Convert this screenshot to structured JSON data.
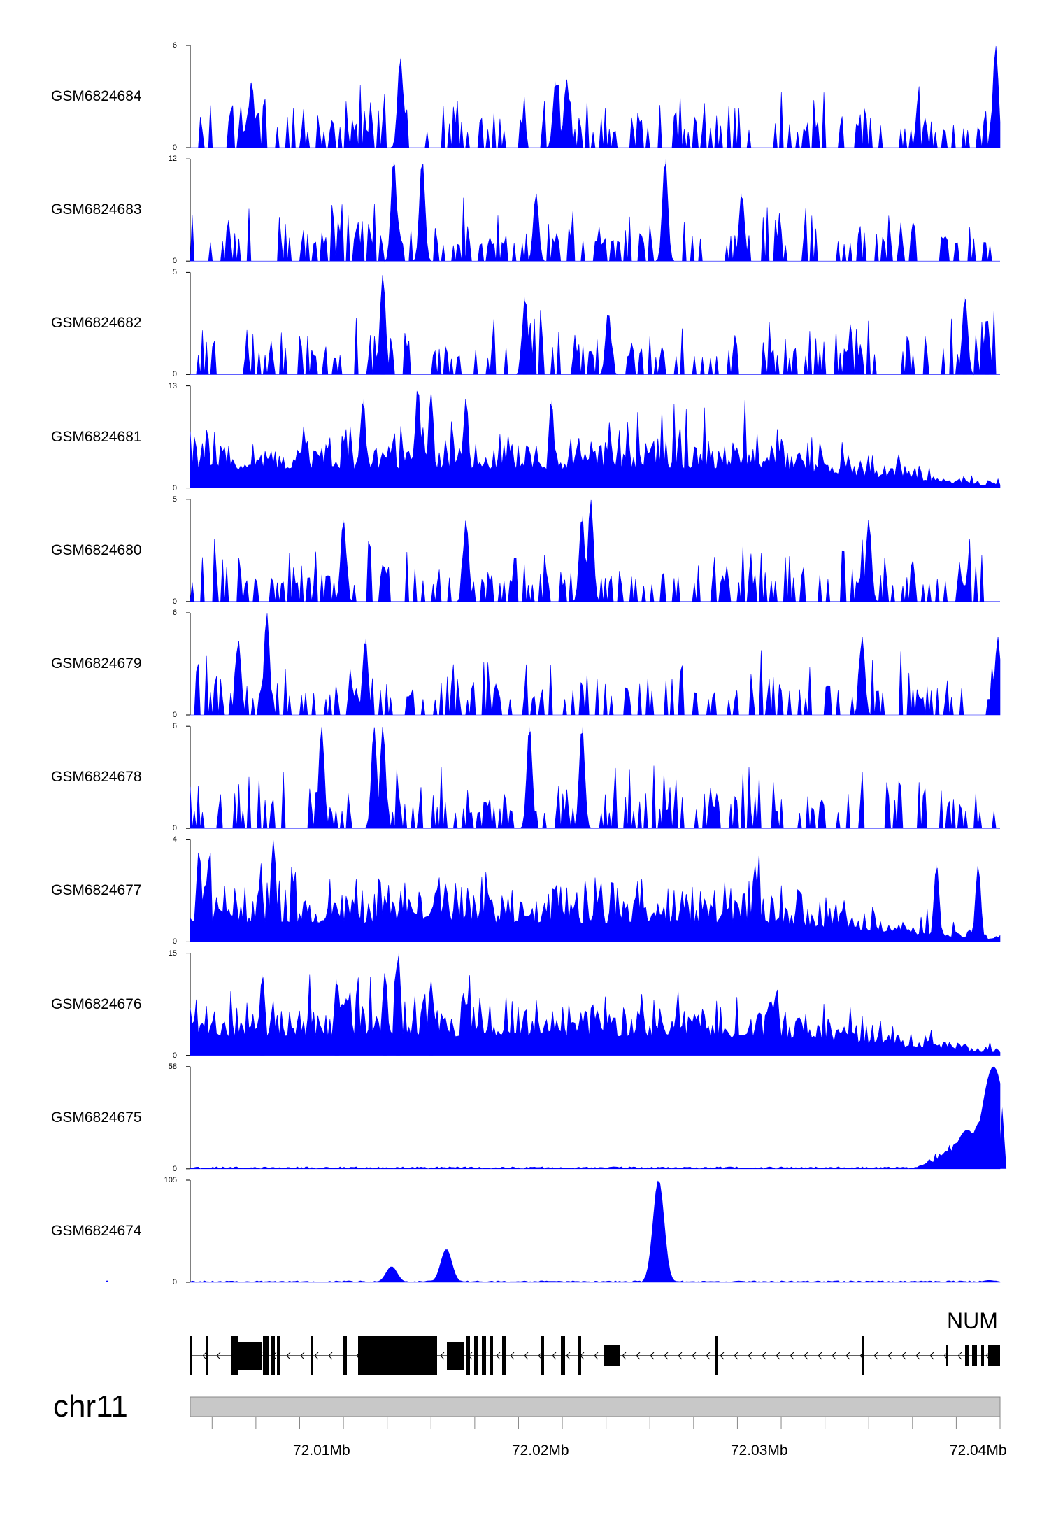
{
  "chart_data": {
    "type": "area",
    "title": "",
    "genome": {
      "chromosome": "chr11",
      "x_unit": "Mb",
      "xlim": [
        72.004,
        72.041
      ]
    },
    "x_ticks": [
      {
        "value": 72.01,
        "label": "72.01Mb"
      },
      {
        "value": 72.02,
        "label": "72.02Mb"
      },
      {
        "value": 72.03,
        "label": "72.03Mb"
      },
      {
        "value": 72.04,
        "label": "72.04Mb"
      }
    ],
    "gene": {
      "label": "NUM",
      "strand": "-"
    },
    "fill_color": "#0000ff",
    "tracks": [
      {
        "name": "GSM6824684",
        "ymin_label": "0",
        "ymax_label": "6",
        "ymax": 6,
        "pattern": "sparse",
        "peaks": [
          [
            72.0136,
            5.3
          ],
          [
            72.0212,
            4.0
          ],
          [
            72.0408,
            6.0
          ],
          [
            72.0068,
            3.9
          ],
          [
            72.0207,
            3.9
          ]
        ]
      },
      {
        "name": "GSM6824683",
        "ymin_label": "0",
        "ymax_label": "12",
        "ymax": 12,
        "pattern": "sparse",
        "peaks": [
          [
            72.0133,
            12.0
          ],
          [
            72.0146,
            12.0
          ],
          [
            72.0257,
            12.0
          ],
          [
            72.0198,
            8.0
          ],
          [
            72.0292,
            8.0
          ]
        ]
      },
      {
        "name": "GSM6824682",
        "ymin_label": "0",
        "ymax_label": "5",
        "ymax": 5,
        "pattern": "sparse",
        "peaks": [
          [
            72.0128,
            4.9
          ],
          [
            72.0193,
            3.8
          ],
          [
            72.0394,
            3.8
          ],
          [
            72.0231,
            3.1
          ],
          [
            72.0404,
            2.8
          ]
        ]
      },
      {
        "name": "GSM6824681",
        "ymin_label": "0",
        "ymax_label": "13",
        "ymax": 13,
        "pattern": "dense",
        "peaks": [
          [
            72.0144,
            13.0
          ],
          [
            72.0119,
            11.3
          ],
          [
            72.015,
            12.2
          ],
          [
            72.0166,
            11.5
          ],
          [
            72.0205,
            11.2
          ]
        ]
      },
      {
        "name": "GSM6824680",
        "ymin_label": "0",
        "ymax_label": "5",
        "ymax": 5,
        "pattern": "sparse",
        "peaks": [
          [
            72.0223,
            5.0
          ],
          [
            72.011,
            4.0
          ],
          [
            72.0219,
            4.2
          ],
          [
            72.0166,
            4.0
          ],
          [
            72.035,
            4.0
          ]
        ]
      },
      {
        "name": "GSM6824679",
        "ymin_label": "0",
        "ymax_label": "6",
        "ymax": 6,
        "pattern": "sparse",
        "peaks": [
          [
            72.0075,
            6.0
          ],
          [
            72.012,
            4.5
          ],
          [
            72.0062,
            4.4
          ],
          [
            72.0409,
            4.6
          ],
          [
            72.0347,
            4.6
          ]
        ]
      },
      {
        "name": "GSM6824678",
        "ymin_label": "0",
        "ymax_label": "6",
        "ymax": 6,
        "pattern": "sparse",
        "peaks": [
          [
            72.0124,
            6.0
          ],
          [
            72.0128,
            6.0
          ],
          [
            72.0195,
            6.0
          ],
          [
            72.0219,
            6.0
          ],
          [
            72.01,
            6.0
          ]
        ]
      },
      {
        "name": "GSM6824677",
        "ymin_label": "0",
        "ymax_label": "4",
        "ymax": 4,
        "pattern": "dense",
        "peaks": [
          [
            72.0078,
            4.0
          ],
          [
            72.0044,
            3.6
          ],
          [
            72.0381,
            3.0
          ],
          [
            72.04,
            3.0
          ],
          [
            72.0298,
            3.0
          ]
        ]
      },
      {
        "name": "GSM6824676",
        "ymin_label": "0",
        "ymax_label": "15",
        "ymax": 15,
        "pattern": "dense",
        "peaks": [
          [
            72.0135,
            15.0
          ],
          [
            72.0129,
            12.2
          ],
          [
            72.0073,
            11.8
          ],
          [
            72.0107,
            11.2
          ],
          [
            72.015,
            11.0
          ]
        ]
      },
      {
        "name": "GSM6824675",
        "ymin_label": "0",
        "ymax_label": "58",
        "ymax": 58,
        "pattern": "broad",
        "peaks": [
          [
            72.0407,
            58.0
          ],
          [
            72.0402,
            28.0
          ],
          [
            72.0411,
            35.0
          ],
          [
            72.0395,
            22.0
          ],
          [
            72.0387,
            10.0
          ]
        ]
      },
      {
        "name": "GSM6824674",
        "ymin_label": "0",
        "ymax_label": "105",
        "ymax": 105,
        "pattern": "peaks",
        "peaks": [
          [
            72.0254,
            105.0
          ],
          [
            72.0157,
            34.0
          ],
          [
            72.0132,
            16.0
          ],
          [
            72.0002,
            2.0
          ],
          [
            72.0405,
            2.0
          ]
        ]
      }
    ]
  }
}
